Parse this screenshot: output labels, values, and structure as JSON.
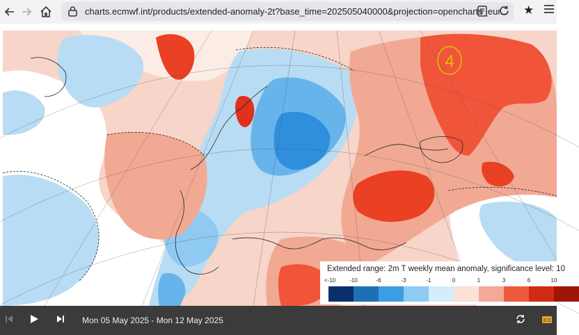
{
  "browser": {
    "url": "charts.ecmwf.int/products/extended-anomaly-2t?base_time=202505040000&projection=opencharts_eur...",
    "icons": [
      "back-arrow-icon",
      "forward-arrow-icon",
      "home-icon",
      "lock-icon",
      "reader-view-icon",
      "reload-icon",
      "bookmark-star-icon",
      "menu-icon"
    ]
  },
  "map": {
    "annotation": "4",
    "annotation_color": "#e0c000",
    "colors": {
      "sea_base": "#f7d5c8",
      "warm_light": "#f2a993",
      "warm_mid": "#f0553a",
      "warm_strong": "#e0301e",
      "cool_light": "#b8dcf3",
      "cool_mid": "#66b4ea",
      "cool_strong": "#2f8fdd",
      "neutral": "#ffffff"
    }
  },
  "legend": {
    "title": "Extended range: 2m T weekly mean anomaly, significance level: 10",
    "ticks": [
      "<-10",
      "-10",
      "-6",
      "-3",
      "-1",
      "0",
      "1",
      "3",
      "6",
      "10"
    ],
    "swatch_colors": [
      "#08306b",
      "#1f6fb4",
      "#3a9ee5",
      "#8fcaf2",
      "#d7ecfa",
      "#fde0d8",
      "#f5a898",
      "#ef5a3c",
      "#d02a14",
      "#9e1608"
    ]
  },
  "player": {
    "date_range": "Mon 05 May 2025 - Mon 12 May 2025",
    "icons": [
      "skip-back-icon",
      "play-icon",
      "skip-forward-icon",
      "loop-icon",
      "layers-icon"
    ]
  }
}
